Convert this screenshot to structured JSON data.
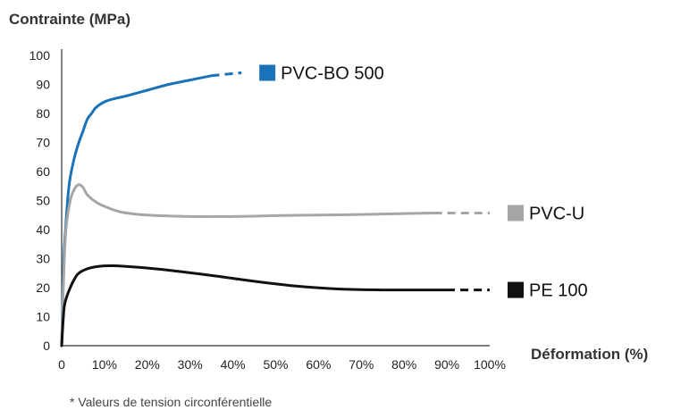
{
  "chart_data": {
    "type": "line",
    "ylabel": "Contrainte (MPa)",
    "xlabel": "Déformation (%)",
    "footnote": "* Valeurs de tension circonférentielle",
    "ylim": [
      0,
      100
    ],
    "xlim": [
      0,
      100
    ],
    "y_ticks": [
      "0",
      "10",
      "20",
      "30",
      "40",
      "50",
      "60",
      "70",
      "80",
      "90",
      "100"
    ],
    "x_ticks": [
      "0",
      "10%",
      "20%",
      "30%",
      "40%",
      "50%",
      "60%",
      "70%",
      "80%",
      "90%",
      "100%"
    ],
    "legend_placement": "right, next to each curve",
    "grid": false,
    "series": [
      {
        "name": "PVC-BO 500",
        "color": "#1a73b8",
        "points": [
          [
            0,
            0
          ],
          [
            0.5,
            30
          ],
          [
            1,
            42
          ],
          [
            1.5,
            52
          ],
          [
            2,
            58
          ],
          [
            3,
            65
          ],
          [
            4,
            70
          ],
          [
            5,
            74
          ],
          [
            6,
            78
          ],
          [
            7,
            80
          ],
          [
            8,
            82
          ],
          [
            10,
            84
          ],
          [
            12,
            85
          ],
          [
            15,
            86
          ],
          [
            20,
            88
          ],
          [
            25,
            90
          ],
          [
            30,
            91.5
          ],
          [
            35,
            93
          ]
        ],
        "dashed": [
          [
            35,
            93
          ],
          [
            42,
            94
          ]
        ]
      },
      {
        "name": "PVC-U",
        "color": "#a6a6a6",
        "points": [
          [
            0,
            0
          ],
          [
            0.5,
            25
          ],
          [
            1,
            40
          ],
          [
            2,
            50
          ],
          [
            3,
            54
          ],
          [
            4,
            55.5
          ],
          [
            5,
            54.5
          ],
          [
            6,
            52
          ],
          [
            8,
            49.5
          ],
          [
            10,
            48
          ],
          [
            14,
            46
          ],
          [
            20,
            45
          ],
          [
            30,
            44.5
          ],
          [
            40,
            44.5
          ],
          [
            50,
            44.8
          ],
          [
            60,
            45
          ],
          [
            70,
            45.2
          ],
          [
            80,
            45.5
          ],
          [
            87,
            45.7
          ]
        ],
        "dashed": [
          [
            87,
            45.7
          ],
          [
            100,
            45.7
          ]
        ]
      },
      {
        "name": "PE 100",
        "color": "#111111",
        "points": [
          [
            0,
            0
          ],
          [
            0.5,
            12
          ],
          [
            1,
            16
          ],
          [
            2,
            20
          ],
          [
            3,
            23
          ],
          [
            4,
            25
          ],
          [
            6,
            26.5
          ],
          [
            8,
            27.2
          ],
          [
            10,
            27.5
          ],
          [
            13,
            27.5
          ],
          [
            18,
            27
          ],
          [
            25,
            26
          ],
          [
            35,
            24.2
          ],
          [
            45,
            22.2
          ],
          [
            55,
            20.5
          ],
          [
            65,
            19.5
          ],
          [
            75,
            19.2
          ],
          [
            85,
            19.2
          ],
          [
            90,
            19.2
          ]
        ],
        "dashed": [
          [
            90,
            19.2
          ],
          [
            100,
            19.2
          ]
        ]
      }
    ]
  }
}
